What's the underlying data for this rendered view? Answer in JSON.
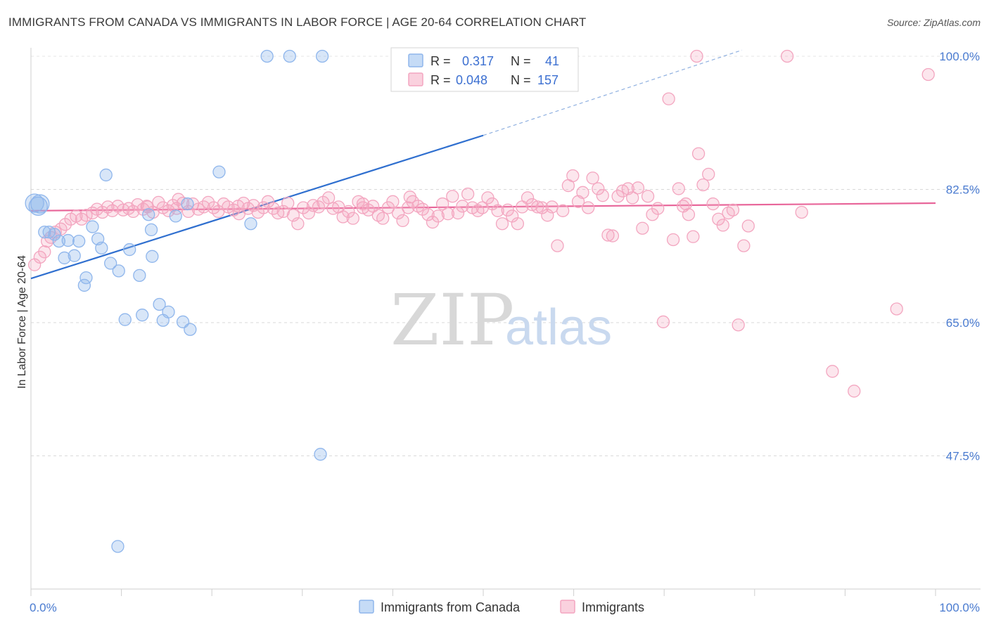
{
  "title": "IMMIGRANTS FROM CANADA VS IMMIGRANTS IN LABOR FORCE | AGE 20-64 CORRELATION CHART",
  "source": "Source: ZipAtlas.com",
  "watermark": {
    "zip": "ZIP",
    "atlas": "atlas"
  },
  "legend": {
    "rows": [
      {
        "r_label": "R =",
        "r_value": "0.317",
        "n_label": "N =",
        "n_value": "41",
        "color": "#8fb6ec"
      },
      {
        "r_label": "R =",
        "r_value": "0.048",
        "n_label": "N =",
        "n_value": "157",
        "color": "#f3a6c0"
      }
    ]
  },
  "chart_data": {
    "type": "scatter",
    "xlabel": "",
    "ylabel": "In Labor Force | Age 20-64",
    "xlim": [
      0,
      100
    ],
    "ylim": [
      30,
      100
    ],
    "x_tick_labels": [
      "0.0%",
      "100.0%"
    ],
    "y_ticks": [
      47.5,
      65.0,
      82.5,
      100.0
    ],
    "y_tick_labels": [
      "47.5%",
      "65.0%",
      "82.5%",
      "100.0%"
    ],
    "grid": true,
    "legend_position": "bottom",
    "series": [
      {
        "name": "Immigrants from Canada",
        "color": "#8fb6ec",
        "trend_color": "#2f6fcf",
        "trend": {
          "x_start": 0,
          "y_start": 70.8,
          "x_solid_end": 50,
          "y_solid_end": 89.6,
          "x_dash_end": 78.6,
          "y_dash_end": 100.8
        },
        "points": [
          [
            0.4,
            80.7
          ],
          [
            0.8,
            80.3
          ],
          [
            1.0,
            80.6
          ],
          [
            1.5,
            76.9
          ],
          [
            2.0,
            76.9
          ],
          [
            2.6,
            76.6
          ],
          [
            3.1,
            75.7
          ],
          [
            3.7,
            73.5
          ],
          [
            4.1,
            75.8
          ],
          [
            4.8,
            73.8
          ],
          [
            5.3,
            75.7
          ],
          [
            5.9,
            69.9
          ],
          [
            6.1,
            70.9
          ],
          [
            6.8,
            77.6
          ],
          [
            7.4,
            76.0
          ],
          [
            7.8,
            74.8
          ],
          [
            8.3,
            84.4
          ],
          [
            8.8,
            72.8
          ],
          [
            9.7,
            71.8
          ],
          [
            10.4,
            65.4
          ],
          [
            10.9,
            74.6
          ],
          [
            12.0,
            71.2
          ],
          [
            12.3,
            66.0
          ],
          [
            13.0,
            79.2
          ],
          [
            13.3,
            77.2
          ],
          [
            13.4,
            73.7
          ],
          [
            14.2,
            67.4
          ],
          [
            14.6,
            65.3
          ],
          [
            15.2,
            66.4
          ],
          [
            16.0,
            79.0
          ],
          [
            16.8,
            65.1
          ],
          [
            17.3,
            80.6
          ],
          [
            17.6,
            64.1
          ],
          [
            20.8,
            84.8
          ],
          [
            24.3,
            78.0
          ],
          [
            26.1,
            100.0
          ],
          [
            28.6,
            100.0
          ],
          [
            32.2,
            100.0
          ],
          [
            32.0,
            47.7
          ],
          [
            9.6,
            35.6
          ],
          [
            49.8,
            100.0
          ]
        ]
      },
      {
        "name": "Immigrants",
        "color": "#f3a6c0",
        "trend_color": "#e8669a",
        "trend": {
          "x_start": 0,
          "y_start": 79.7,
          "x_end": 100,
          "y_end": 80.7
        },
        "points": [
          [
            0.4,
            72.6
          ],
          [
            1.0,
            73.6
          ],
          [
            1.5,
            74.3
          ],
          [
            1.8,
            75.7
          ],
          [
            2.2,
            76.2
          ],
          [
            2.7,
            76.9
          ],
          [
            3.3,
            77.3
          ],
          [
            3.8,
            77.9
          ],
          [
            4.4,
            78.6
          ],
          [
            5.0,
            79.0
          ],
          [
            5.6,
            78.6
          ],
          [
            6.1,
            79.1
          ],
          [
            6.8,
            79.4
          ],
          [
            7.3,
            79.9
          ],
          [
            7.9,
            79.5
          ],
          [
            8.5,
            80.2
          ],
          [
            9.0,
            79.7
          ],
          [
            9.6,
            80.3
          ],
          [
            10.2,
            79.8
          ],
          [
            10.8,
            80.0
          ],
          [
            11.3,
            79.6
          ],
          [
            11.8,
            80.5
          ],
          [
            12.4,
            79.9
          ],
          [
            12.9,
            80.2
          ],
          [
            13.5,
            79.5
          ],
          [
            14.1,
            80.8
          ],
          [
            14.6,
            80.1
          ],
          [
            15.2,
            79.7
          ],
          [
            15.7,
            80.4
          ],
          [
            16.3,
            81.2
          ],
          [
            16.8,
            80.7
          ],
          [
            17.4,
            79.6
          ],
          [
            17.9,
            80.6
          ],
          [
            18.5,
            79.9
          ],
          [
            19.1,
            80.2
          ],
          [
            19.6,
            80.8
          ],
          [
            20.2,
            80.1
          ],
          [
            20.7,
            79.6
          ],
          [
            21.3,
            80.6
          ],
          [
            21.8,
            80.2
          ],
          [
            22.4,
            79.8
          ],
          [
            22.9,
            80.3
          ],
          [
            23.5,
            80.7
          ],
          [
            24.0,
            80.0
          ],
          [
            24.6,
            80.4
          ],
          [
            25.1,
            79.5
          ],
          [
            25.7,
            80.1
          ],
          [
            26.2,
            80.9
          ],
          [
            26.8,
            80.0
          ],
          [
            27.3,
            79.4
          ],
          [
            27.9,
            79.6
          ],
          [
            28.4,
            80.7
          ],
          [
            29.0,
            79.1
          ],
          [
            29.5,
            78.0
          ],
          [
            30.1,
            80.1
          ],
          [
            30.7,
            79.4
          ],
          [
            31.2,
            80.4
          ],
          [
            31.8,
            80.2
          ],
          [
            32.3,
            80.8
          ],
          [
            32.9,
            81.4
          ],
          [
            33.4,
            80.0
          ],
          [
            34.0,
            80.2
          ],
          [
            34.5,
            78.9
          ],
          [
            35.1,
            79.6
          ],
          [
            35.6,
            78.7
          ],
          [
            36.2,
            80.9
          ],
          [
            36.7,
            80.1
          ],
          [
            37.3,
            79.8
          ],
          [
            37.8,
            80.3
          ],
          [
            38.4,
            79.1
          ],
          [
            38.9,
            78.7
          ],
          [
            39.5,
            80.1
          ],
          [
            40.0,
            80.9
          ],
          [
            40.6,
            79.4
          ],
          [
            41.1,
            78.4
          ],
          [
            41.7,
            80.1
          ],
          [
            42.2,
            80.9
          ],
          [
            42.8,
            80.3
          ],
          [
            43.3,
            79.9
          ],
          [
            43.9,
            79.2
          ],
          [
            44.4,
            78.2
          ],
          [
            45.0,
            79.0
          ],
          [
            45.5,
            80.6
          ],
          [
            46.1,
            79.3
          ],
          [
            46.6,
            81.6
          ],
          [
            47.2,
            79.4
          ],
          [
            47.7,
            80.3
          ],
          [
            48.3,
            81.9
          ],
          [
            48.8,
            80.1
          ],
          [
            49.4,
            79.7
          ],
          [
            49.9,
            80.1
          ],
          [
            50.5,
            81.4
          ],
          [
            51.0,
            80.6
          ],
          [
            51.6,
            79.7
          ],
          [
            52.1,
            78.0
          ],
          [
            52.7,
            79.8
          ],
          [
            53.2,
            79.0
          ],
          [
            53.8,
            78.0
          ],
          [
            54.3,
            80.2
          ],
          [
            54.9,
            81.4
          ],
          [
            55.4,
            80.5
          ],
          [
            56.0,
            80.2
          ],
          [
            56.5,
            80.1
          ],
          [
            57.1,
            79.1
          ],
          [
            57.6,
            80.2
          ],
          [
            58.2,
            75.1
          ],
          [
            58.8,
            79.7
          ],
          [
            59.4,
            83.0
          ],
          [
            59.9,
            84.3
          ],
          [
            60.5,
            80.9
          ],
          [
            61.0,
            82.1
          ],
          [
            61.6,
            80.1
          ],
          [
            62.1,
            84.0
          ],
          [
            62.7,
            82.6
          ],
          [
            63.2,
            81.7
          ],
          [
            63.8,
            76.5
          ],
          [
            64.3,
            76.4
          ],
          [
            64.9,
            81.6
          ],
          [
            65.4,
            82.3
          ],
          [
            66.0,
            82.6
          ],
          [
            66.5,
            81.4
          ],
          [
            67.1,
            82.7
          ],
          [
            67.6,
            77.4
          ],
          [
            68.2,
            81.6
          ],
          [
            68.7,
            79.2
          ],
          [
            69.3,
            80.0
          ],
          [
            69.9,
            65.1
          ],
          [
            70.5,
            94.4
          ],
          [
            71.0,
            75.9
          ],
          [
            71.6,
            82.6
          ],
          [
            72.1,
            80.3
          ],
          [
            72.7,
            79.2
          ],
          [
            73.2,
            76.3
          ],
          [
            73.8,
            87.2
          ],
          [
            74.3,
            83.1
          ],
          [
            74.9,
            84.5
          ],
          [
            75.4,
            80.6
          ],
          [
            76.0,
            78.6
          ],
          [
            76.5,
            77.8
          ],
          [
            77.1,
            79.4
          ],
          [
            77.6,
            79.8
          ],
          [
            78.2,
            64.7
          ],
          [
            78.8,
            75.1
          ],
          [
            79.3,
            77.7
          ],
          [
            83.6,
            100.0
          ],
          [
            73.6,
            100.0
          ],
          [
            99.2,
            97.6
          ],
          [
            95.7,
            66.8
          ],
          [
            88.6,
            58.6
          ],
          [
            91.0,
            56.0
          ],
          [
            12.8,
            80.3
          ],
          [
            16.1,
            80.0
          ],
          [
            23.0,
            79.3
          ],
          [
            36.7,
            80.6
          ],
          [
            41.9,
            81.5
          ],
          [
            72.4,
            80.6
          ],
          [
            85.2,
            79.5
          ]
        ]
      }
    ]
  }
}
